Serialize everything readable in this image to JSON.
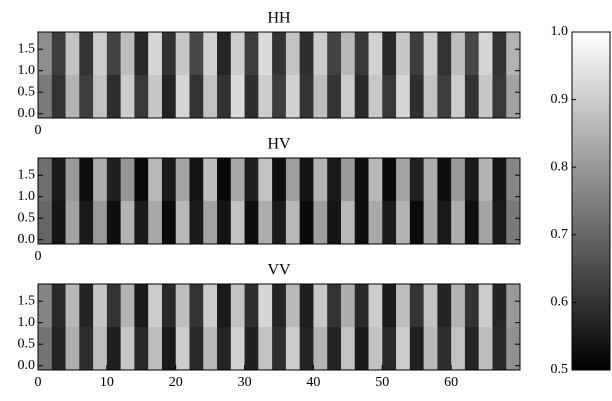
{
  "chart_data": {
    "type": "heatmap",
    "clim": [
      0.5,
      1.0
    ],
    "colormap": [
      "#000000",
      "#ffffff"
    ],
    "cticks": [
      0.5,
      0.6,
      0.7,
      0.8,
      0.9,
      {
        "value": 1.0,
        "label": "1.0"
      }
    ],
    "xlim": [
      0,
      70
    ],
    "ylim": [
      -0.1,
      1.9
    ],
    "yticks": [
      {
        "value": 0,
        "label": "0.0"
      },
      0.5,
      {
        "value": 1,
        "label": "1.0"
      },
      1.5
    ],
    "panels": [
      {
        "title": "HH",
        "xticks": [
          0
        ],
        "values": [
          [
            0.78,
            0.62,
            0.88,
            0.6,
            0.9,
            0.63,
            0.87,
            0.58,
            0.92,
            0.6,
            0.89,
            0.64,
            0.91,
            0.57,
            0.9,
            0.62,
            0.93,
            0.6,
            0.88,
            0.59,
            0.9,
            0.63,
            0.86,
            0.61,
            0.91,
            0.58,
            0.89,
            0.62,
            0.9,
            0.6,
            0.87,
            0.64,
            0.92,
            0.6,
            0.85
          ],
          [
            0.74,
            0.6,
            0.85,
            0.62,
            0.88,
            0.59,
            0.9,
            0.61,
            0.89,
            0.57,
            0.92,
            0.6,
            0.88,
            0.6,
            0.93,
            0.59,
            0.9,
            0.62,
            0.91,
            0.6,
            0.87,
            0.6,
            0.9,
            0.58,
            0.89,
            0.61,
            0.92,
            0.59,
            0.88,
            0.62,
            0.9,
            0.6,
            0.89,
            0.61,
            0.82
          ]
        ]
      },
      {
        "title": "HV",
        "xticks": [
          0
        ],
        "values": [
          [
            0.72,
            0.55,
            0.8,
            0.53,
            0.84,
            0.56,
            0.79,
            0.52,
            0.86,
            0.55,
            0.82,
            0.54,
            0.87,
            0.52,
            0.83,
            0.56,
            0.88,
            0.53,
            0.81,
            0.54,
            0.85,
            0.55,
            0.8,
            0.53,
            0.86,
            0.52,
            0.82,
            0.56,
            0.84,
            0.53,
            0.8,
            0.55,
            0.85,
            0.54,
            0.76
          ],
          [
            0.7,
            0.54,
            0.82,
            0.55,
            0.8,
            0.53,
            0.85,
            0.55,
            0.83,
            0.52,
            0.86,
            0.55,
            0.82,
            0.54,
            0.88,
            0.53,
            0.84,
            0.55,
            0.86,
            0.52,
            0.81,
            0.54,
            0.86,
            0.53,
            0.83,
            0.55,
            0.85,
            0.52,
            0.83,
            0.55,
            0.84,
            0.53,
            0.82,
            0.55,
            0.74
          ]
        ]
      },
      {
        "title": "VV",
        "xticks": [
          0,
          10,
          20,
          30,
          40,
          50,
          60
        ],
        "values": [
          [
            0.76,
            0.58,
            0.86,
            0.57,
            0.89,
            0.6,
            0.85,
            0.55,
            0.9,
            0.58,
            0.87,
            0.6,
            0.9,
            0.55,
            0.88,
            0.59,
            0.92,
            0.57,
            0.86,
            0.56,
            0.89,
            0.6,
            0.84,
            0.58,
            0.9,
            0.55,
            0.87,
            0.6,
            0.88,
            0.57,
            0.85,
            0.6,
            0.9,
            0.57,
            0.8
          ],
          [
            0.73,
            0.57,
            0.84,
            0.59,
            0.87,
            0.56,
            0.89,
            0.58,
            0.87,
            0.55,
            0.9,
            0.58,
            0.86,
            0.57,
            0.91,
            0.56,
            0.88,
            0.59,
            0.9,
            0.57,
            0.85,
            0.57,
            0.88,
            0.55,
            0.88,
            0.58,
            0.9,
            0.56,
            0.86,
            0.59,
            0.88,
            0.57,
            0.87,
            0.58,
            0.78
          ]
        ]
      }
    ]
  }
}
